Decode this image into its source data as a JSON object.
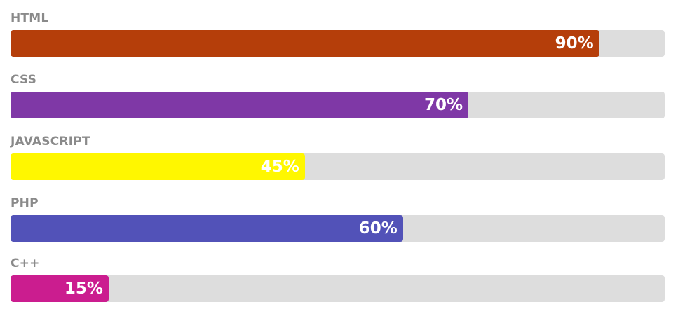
{
  "skills": [
    {
      "label": "HTML",
      "percent_text": "90%",
      "percent": 90,
      "color": "#b53e0a"
    },
    {
      "label": "CSS",
      "percent_text": "70%",
      "percent": 70,
      "color": "#7f38a6"
    },
    {
      "label": "JAVASCRIPT",
      "percent_text": "45%",
      "percent": 45,
      "color": "#fff700"
    },
    {
      "label": "PHP",
      "percent_text": "60%",
      "percent": 60,
      "color": "#5252b8"
    },
    {
      "label": "C++",
      "percent_text": "15%",
      "percent": 15,
      "color": "#cb1d8f"
    }
  ]
}
